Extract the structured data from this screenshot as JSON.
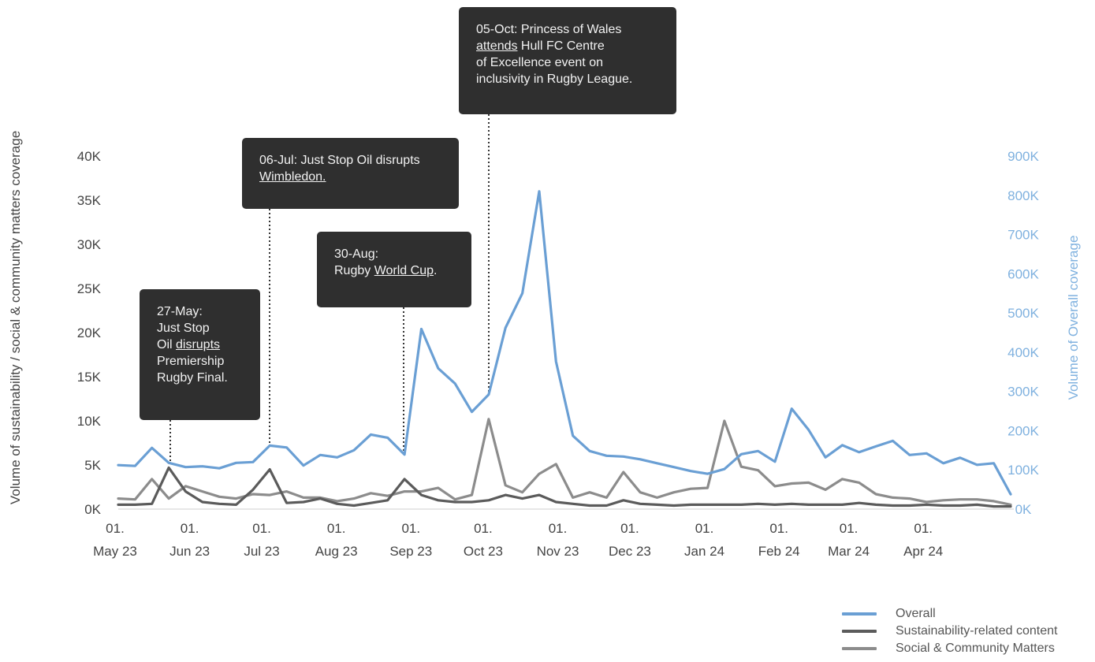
{
  "chart_data": {
    "type": "line",
    "ylabel_left": "Volume of sustainability / social & community matters coverage",
    "ylabel_right": "Volume of Overall coverage",
    "left_axis": {
      "ylim": [
        0,
        40000
      ],
      "ticks": [
        "0K",
        "5K",
        "10K",
        "15K",
        "20K",
        "25K",
        "30K",
        "35K",
        "40K"
      ]
    },
    "right_axis": {
      "ylim": [
        0,
        900000
      ],
      "ticks": [
        "0K",
        "100K",
        "200K",
        "300K",
        "400K",
        "500K",
        "600K",
        "700K",
        "800K",
        "900K"
      ]
    },
    "x_ticks": [
      {
        "top": "01.",
        "bottom": "May 23"
      },
      {
        "top": "01.",
        "bottom": "Jun 23"
      },
      {
        "top": "01.",
        "bottom": "Jul 23"
      },
      {
        "top": "01.",
        "bottom": "Aug 23"
      },
      {
        "top": "01.",
        "bottom": "Sep 23"
      },
      {
        "top": "01.",
        "bottom": "Oct 23"
      },
      {
        "top": "01.",
        "bottom": "Nov 23"
      },
      {
        "top": "01.",
        "bottom": "Dec 23"
      },
      {
        "top": "01.",
        "bottom": "Jan 24"
      },
      {
        "top": "01.",
        "bottom": "Feb 24"
      },
      {
        "top": "01.",
        "bottom": "Mar 24"
      },
      {
        "top": "01.",
        "bottom": "Apr 24"
      }
    ],
    "x_period": "weekly, 01 May 2023 – end Apr 2024",
    "grid": false,
    "legend_position": "bottom-right",
    "colors": {
      "overall": "#6a9fd4",
      "sustainability": "#5b5b5b",
      "social": "#8c8c8c",
      "axis_right": "#7fb1df"
    },
    "series": [
      {
        "name": "Overall",
        "axis": "right",
        "values": [
          112000,
          110000,
          156000,
          118000,
          107000,
          109000,
          104000,
          118000,
          120000,
          162000,
          157000,
          111000,
          138000,
          132000,
          150000,
          190000,
          182000,
          139000,
          459000,
          359000,
          320000,
          248000,
          292000,
          462000,
          550000,
          810000,
          376000,
          187000,
          148000,
          136000,
          134000,
          127000,
          117000,
          107000,
          97000,
          90000,
          102000,
          140000,
          148000,
          121000,
          256000,
          202000,
          132000,
          163000,
          145000,
          160000,
          174000,
          138000,
          142000,
          117000,
          131000,
          113000,
          117000,
          38000
        ]
      },
      {
        "name": "Sustainability-related content",
        "axis": "left",
        "values": [
          500,
          500,
          600,
          4700,
          2000,
          800,
          600,
          500,
          2200,
          4500,
          700,
          800,
          1200,
          600,
          400,
          700,
          1000,
          3400,
          1600,
          1000,
          800,
          800,
          1000,
          1600,
          1200,
          1600,
          800,
          600,
          400,
          400,
          1000,
          600,
          500,
          400,
          500,
          500,
          500,
          500,
          600,
          500,
          600,
          500,
          500,
          500,
          700,
          500,
          400,
          400,
          500,
          400,
          400,
          500,
          300,
          300
        ]
      },
      {
        "name": "Social & Community Matters",
        "axis": "left",
        "values": [
          1200,
          1100,
          3400,
          1200,
          2600,
          2000,
          1400,
          1200,
          1700,
          1600,
          2000,
          1300,
          1300,
          900,
          1200,
          1800,
          1500,
          2000,
          2000,
          2400,
          1100,
          1600,
          10200,
          2700,
          1900,
          4000,
          5100,
          1300,
          1900,
          1300,
          4200,
          1900,
          1300,
          1900,
          2300,
          2400,
          10000,
          4800,
          4400,
          2600,
          2900,
          3000,
          2200,
          3400,
          3000,
          1700,
          1300,
          1200,
          800,
          1000,
          1100,
          1100,
          900,
          500
        ]
      }
    ],
    "annotations": [
      {
        "x_index": 3,
        "date": "27-May",
        "pre": "27-May:\nJust Stop\nOil ",
        "link": "disrupts",
        "post": "\nPremiership\nRugby Final."
      },
      {
        "x_index": 9,
        "date": "06-Jul",
        "pre": "06-Jul: Just Stop Oil disrupts\n",
        "link": "Wimbledon.",
        "post": ""
      },
      {
        "x_index": 17,
        "date": "30-Aug",
        "pre": "30-Aug:\nRugby ",
        "link": "World Cup",
        "post": "."
      },
      {
        "x_index": 22,
        "date": "05-Oct",
        "pre": "05-Oct: Princess of Wales\n",
        "link": "attends",
        "post": " Hull FC Centre\nof Excellence event on\ninclusivity in Rugby League."
      }
    ]
  }
}
